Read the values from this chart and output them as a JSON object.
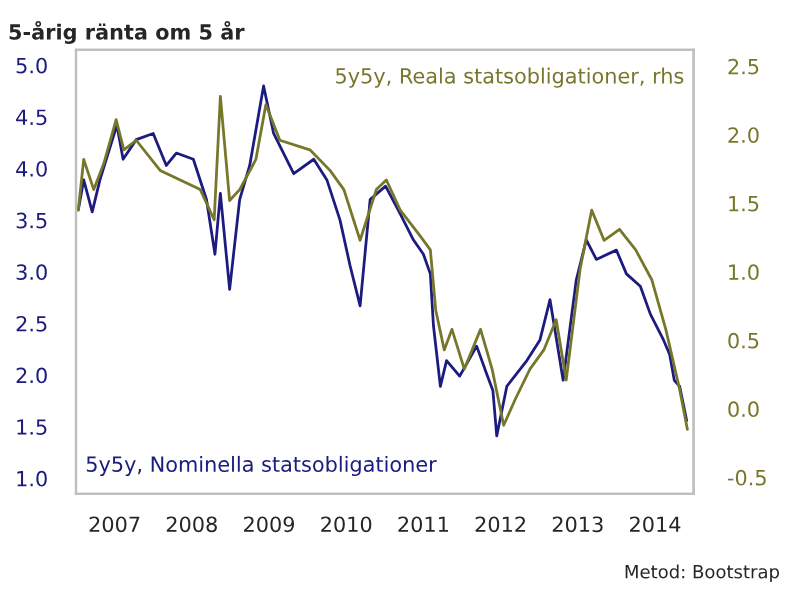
{
  "chart_data": {
    "type": "line",
    "title": "5-årig ränta om 5 år",
    "annotations": [
      "Metod: Bootstrap"
    ],
    "xlim": [
      2007,
      2015
    ],
    "xticks": [
      {
        "value": 2007.5,
        "label": "2007"
      },
      {
        "value": 2008.5,
        "label": "2008"
      },
      {
        "value": 2009.5,
        "label": "2009"
      },
      {
        "value": 2010.5,
        "label": "2010"
      },
      {
        "value": 2011.5,
        "label": "2011"
      },
      {
        "value": 2012.5,
        "label": "2012"
      },
      {
        "value": 2013.5,
        "label": "2013"
      },
      {
        "value": 2014.5,
        "label": "2014"
      }
    ],
    "ylim": [
      0.85,
      5.15
    ],
    "yticks": [
      {
        "value": 1,
        "label": "1.0"
      },
      {
        "value": 1.5,
        "label": "1.5"
      },
      {
        "value": 2,
        "label": "2.0"
      },
      {
        "value": 2.5,
        "label": "2.5"
      },
      {
        "value": 3,
        "label": "3.0"
      },
      {
        "value": 3.5,
        "label": "3.5"
      },
      {
        "value": 4,
        "label": "4.0"
      },
      {
        "value": 4.5,
        "label": "4.5"
      },
      {
        "value": 5,
        "label": "5.0"
      }
    ],
    "y2lim": [
      -0.62,
      2.62
    ],
    "y2ticks": [
      {
        "value": -0.5,
        "label": "-0.5"
      },
      {
        "value": 0,
        "label": "0.0"
      },
      {
        "value": 0.5,
        "label": "0.5"
      },
      {
        "value": 1,
        "label": "1.0"
      },
      {
        "value": 1.5,
        "label": "1.5"
      },
      {
        "value": 2,
        "label": "2.0"
      },
      {
        "value": 2.5,
        "label": "2.5"
      }
    ],
    "grid": false,
    "legend": false,
    "series": [
      {
        "name": "5y5y, Nominella statsobligationer",
        "color": "#1c1c80",
        "x": [
          2007.03,
          2007.1,
          2007.21,
          2007.31,
          2007.53,
          2007.61,
          2007.78,
          2008.0,
          2008.17,
          2008.3,
          2008.52,
          2008.69,
          2008.8,
          2008.87,
          2008.99,
          2009.12,
          2009.25,
          2009.43,
          2009.56,
          2009.82,
          2010.08,
          2010.25,
          2010.42,
          2010.55,
          2010.68,
          2010.81,
          2011.01,
          2011.2,
          2011.37,
          2011.5,
          2011.59,
          2011.63,
          2011.72,
          2011.8,
          2011.97,
          2012.19,
          2012.32,
          2012.4,
          2012.45,
          2012.58,
          2012.84,
          2013.01,
          2013.14,
          2013.31,
          2013.48,
          2013.61,
          2013.74,
          2014.0,
          2014.13,
          2014.31,
          2014.44,
          2014.61,
          2014.69,
          2014.75,
          2014.82,
          2014.91
        ],
        "values": [
          3.6,
          3.89,
          3.58,
          3.89,
          4.42,
          4.09,
          4.28,
          4.34,
          4.03,
          4.15,
          4.09,
          3.7,
          3.17,
          3.76,
          2.83,
          3.7,
          4.03,
          4.8,
          4.34,
          3.95,
          4.09,
          3.89,
          3.5,
          3.06,
          2.67,
          3.7,
          3.83,
          3.56,
          3.31,
          3.17,
          2.98,
          2.48,
          1.89,
          2.14,
          1.99,
          2.28,
          2.01,
          1.85,
          1.41,
          1.89,
          2.14,
          2.34,
          2.73,
          1.95,
          2.92,
          3.31,
          3.12,
          3.21,
          2.98,
          2.86,
          2.59,
          2.34,
          2.2,
          1.95,
          1.89,
          1.56
        ]
      },
      {
        "name": "5y5y, Reala statsobligationer, rhs",
        "color": "#77772b",
        "axis": "y2",
        "x": [
          2007.03,
          2007.1,
          2007.23,
          2007.36,
          2007.52,
          2007.62,
          2007.78,
          2008.09,
          2008.35,
          2008.61,
          2008.79,
          2008.87,
          2008.99,
          2009.12,
          2009.33,
          2009.46,
          2009.64,
          2010.03,
          2010.29,
          2010.47,
          2010.68,
          2010.89,
          2011.02,
          2011.2,
          2011.46,
          2011.59,
          2011.66,
          2011.77,
          2011.87,
          2012.03,
          2012.24,
          2012.39,
          2012.54,
          2012.69,
          2012.88,
          2013.06,
          2013.22,
          2013.35,
          2013.53,
          2013.68,
          2013.84,
          2014.04,
          2014.25,
          2014.46,
          2014.64,
          2014.82,
          2014.92
        ],
        "values": [
          1.45,
          1.82,
          1.6,
          1.79,
          2.11,
          1.89,
          1.96,
          1.74,
          1.67,
          1.6,
          1.38,
          2.28,
          1.52,
          1.6,
          1.82,
          2.22,
          1.96,
          1.89,
          1.74,
          1.6,
          1.23,
          1.6,
          1.67,
          1.45,
          1.26,
          1.16,
          0.72,
          0.43,
          0.58,
          0.29,
          0.58,
          0.29,
          -0.12,
          0.07,
          0.29,
          0.43,
          0.65,
          0.21,
          1.02,
          1.45,
          1.23,
          1.31,
          1.16,
          0.94,
          0.58,
          0.14,
          -0.15
        ]
      }
    ]
  }
}
